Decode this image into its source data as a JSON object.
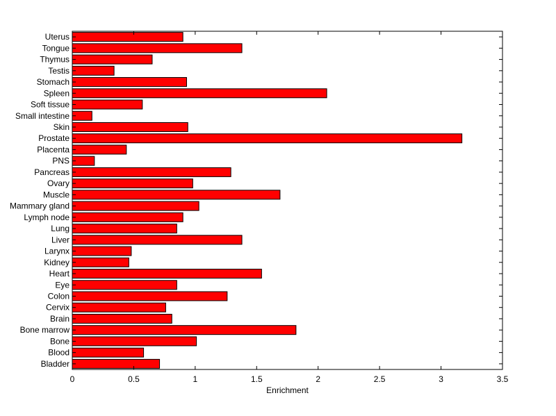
{
  "chart_data": {
    "type": "bar",
    "orientation": "horizontal",
    "categories": [
      "Bladder",
      "Blood",
      "Bone",
      "Bone marrow",
      "Brain",
      "Cervix",
      "Colon",
      "Eye",
      "Heart",
      "Kidney",
      "Larynx",
      "Liver",
      "Lung",
      "Lymph node",
      "Mammary gland",
      "Muscle",
      "Ovary",
      "Pancreas",
      "PNS",
      "Placenta",
      "Prostate",
      "Skin",
      "Small intestine",
      "Soft tissue",
      "Spleen",
      "Stomach",
      "Testis",
      "Thymus",
      "Tongue",
      "Uterus"
    ],
    "values": [
      0.71,
      0.58,
      1.01,
      1.82,
      0.81,
      0.76,
      1.26,
      0.85,
      1.54,
      0.46,
      0.48,
      1.38,
      0.85,
      0.9,
      1.03,
      1.69,
      0.98,
      1.29,
      0.18,
      0.44,
      3.17,
      0.94,
      0.16,
      0.57,
      2.07,
      0.93,
      0.34,
      0.65,
      1.38,
      0.9
    ],
    "bar_color": "#ff0000",
    "edge_color": "#000000",
    "xlabel": "Enrichment",
    "ylabel": "",
    "title": "",
    "xlim": [
      0,
      3.5
    ],
    "xticks": [
      "0",
      "0.5",
      "1",
      "1.5",
      "2",
      "2.5",
      "3",
      "3.5"
    ],
    "xtick_values": [
      0,
      0.5,
      1,
      1.5,
      2,
      2.5,
      3,
      3.5
    ],
    "grid": false
  }
}
